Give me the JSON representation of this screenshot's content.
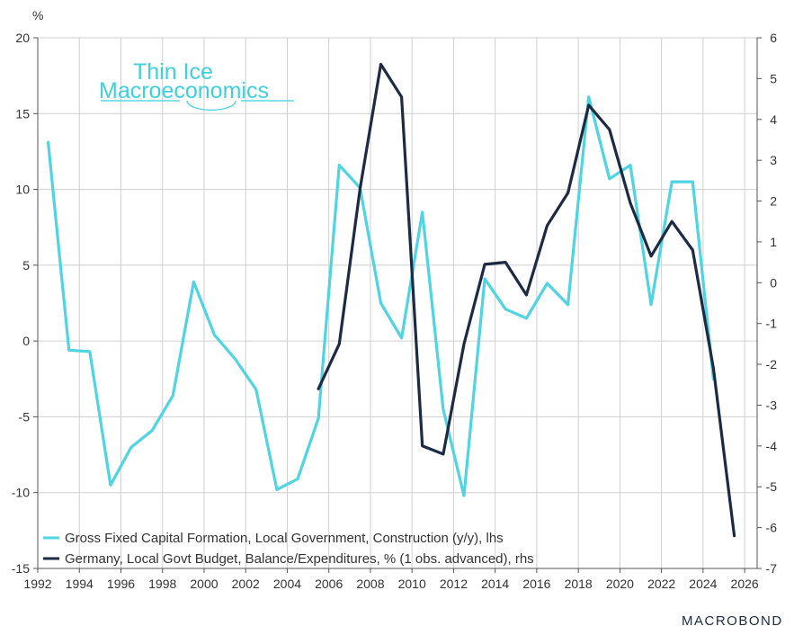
{
  "chart_data": {
    "type": "line",
    "y_left_unit": "%",
    "y_left_lim": [
      -15,
      20
    ],
    "y_left_ticks": [
      20,
      15,
      10,
      5,
      0,
      -5,
      -10,
      -15
    ],
    "y_right_lim": [
      -7,
      6
    ],
    "y_right_ticks": [
      6,
      5,
      4,
      3,
      2,
      1,
      0,
      -1,
      -2,
      -3,
      -4,
      -5,
      -6,
      -7
    ],
    "x_lim": [
      1992,
      2026.6
    ],
    "x_ticks": [
      "1992",
      "1994",
      "1996",
      "1998",
      "2000",
      "2002",
      "2004",
      "2006",
      "2008",
      "2010",
      "2012",
      "2014",
      "2016",
      "2018",
      "2020",
      "2022",
      "2024",
      "2026"
    ],
    "grid": true,
    "legend_position": "bottom-left",
    "series": [
      {
        "name": "Gross Fixed Capital Formation, Local Government, Construction (y/y), lhs",
        "axis": "left",
        "color": "#4fd4e2",
        "x": [
          1992.5,
          1993.5,
          1994.5,
          1995.5,
          1996.5,
          1997.5,
          1998.5,
          1999.5,
          2000.5,
          2001.5,
          2002.5,
          2003.5,
          2004.5,
          2005.5,
          2006.5,
          2007.5,
          2008.5,
          2009.5,
          2010.5,
          2011.5,
          2012.5,
          2013.5,
          2014.5,
          2015.5,
          2016.5,
          2017.5,
          2018.5,
          2019.5,
          2020.5,
          2021.5,
          2022.5,
          2023.5,
          2024.5
        ],
        "values": [
          13.1,
          -0.6,
          -0.7,
          -9.5,
          -7.0,
          -5.9,
          -3.6,
          3.9,
          0.4,
          -1.2,
          -3.2,
          -9.8,
          -9.1,
          -5.1,
          11.6,
          10.1,
          2.5,
          0.2,
          8.5,
          -4.5,
          -10.2,
          4.1,
          2.1,
          1.5,
          3.8,
          2.4,
          16.1,
          10.7,
          11.6,
          2.4,
          10.5,
          10.5,
          -2.5
        ]
      },
      {
        "name": "Germany, Local Govt Budget, Balance/Expenditures, % (1 obs. advanced), rhs",
        "axis": "right",
        "color": "#1c2a44",
        "x": [
          2005.5,
          2006.5,
          2007.5,
          2008.5,
          2009.5,
          2010.5,
          2011.5,
          2012.5,
          2013.5,
          2014.5,
          2015.5,
          2016.5,
          2017.5,
          2018.5,
          2019.5,
          2020.5,
          2021.5,
          2022.5,
          2023.5,
          2024.5,
          2025.5
        ],
        "values": [
          -2.6,
          -1.5,
          2.3,
          5.35,
          4.55,
          -4.0,
          -4.2,
          -1.5,
          0.45,
          0.5,
          -0.3,
          1.4,
          2.2,
          4.35,
          3.75,
          1.95,
          0.65,
          1.5,
          0.8,
          -2.1,
          -6.2
        ]
      }
    ]
  },
  "logo": {
    "line1": "Thin Ice",
    "line2": "Macroeconomics"
  },
  "brand": "MACROBOND"
}
